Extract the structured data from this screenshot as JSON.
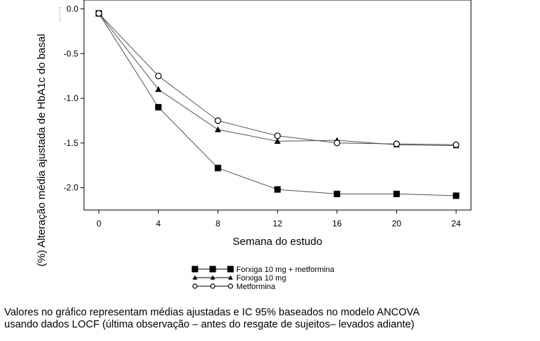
{
  "chart_data": {
    "type": "line",
    "title": "",
    "xlabel": "Semana do estudo",
    "ylabel": "(%) Alteração média ajustada de HbA1c do basal",
    "x": [
      0,
      4,
      8,
      12,
      16,
      20,
      24
    ],
    "x_ticks": [
      "0",
      "4",
      "8",
      "12",
      "16",
      "20",
      "24"
    ],
    "y_ticks": [
      "0.0",
      "-0.5",
      "-1.0",
      "-1.5",
      "-2.0"
    ],
    "y_tick_values": [
      0.0,
      -0.5,
      -1.0,
      -1.5,
      -2.0
    ],
    "xlim": [
      -1,
      25
    ],
    "ylim": [
      -2.25,
      0.1
    ],
    "grid": false,
    "legend_position": "bottom-center",
    "series": [
      {
        "name": "Forxiga 10 mg + metformina",
        "marker": "square-filled",
        "color": "#000000",
        "values": [
          -0.05,
          -1.1,
          -1.78,
          -2.02,
          -2.07,
          -2.07,
          -2.09
        ]
      },
      {
        "name": "Forxiga 10 mg",
        "marker": "triangle-filled",
        "color": "#000000",
        "values": [
          -0.05,
          -0.9,
          -1.35,
          -1.48,
          -1.47,
          -1.52,
          -1.53
        ]
      },
      {
        "name": "Metformina",
        "marker": "circle-open",
        "color": "#000000",
        "values": [
          -0.05,
          -0.75,
          -1.25,
          -1.42,
          -1.5,
          -1.51,
          -1.52
        ]
      }
    ]
  },
  "caption": {
    "line1": "Valores no gráfico representam médias ajustadas e IC 95% baseados no modelo ANCOVA",
    "line2": "usando dados LOCF (última observação – antes do resgate de sujeitos– levados adiante)"
  }
}
